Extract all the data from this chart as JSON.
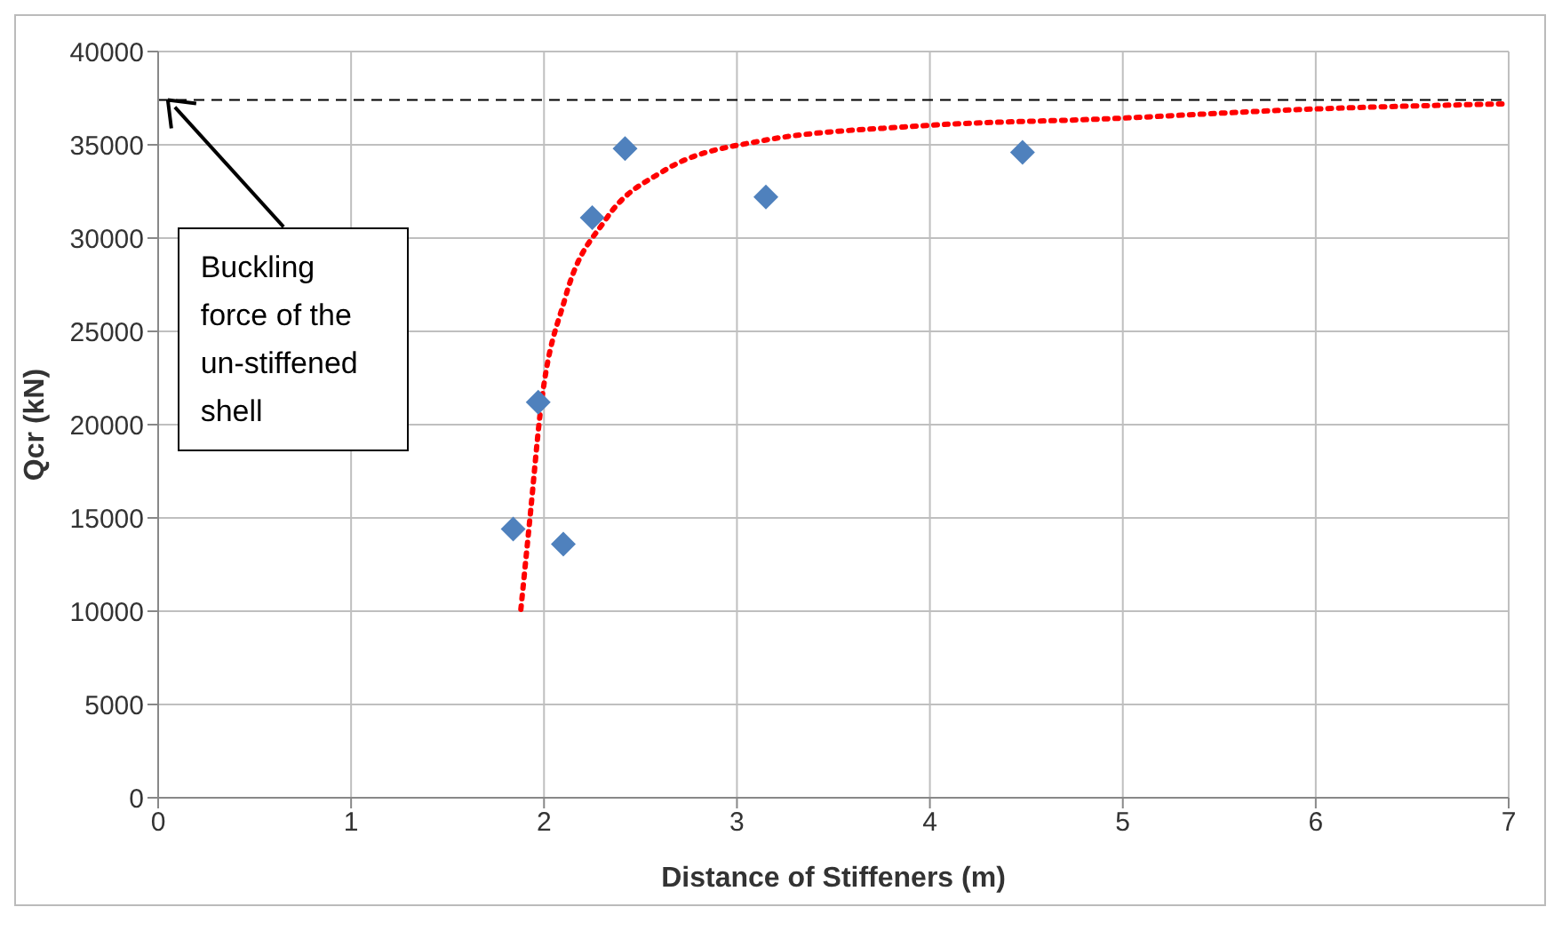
{
  "chart_data": {
    "type": "scatter",
    "xlabel": "Distance of Stiffeners (m)",
    "ylabel": "Qcr (kN)",
    "xlim": [
      0,
      7
    ],
    "xticks": [
      0,
      1,
      2,
      3,
      4,
      5,
      6,
      7
    ],
    "ylim": [
      0,
      40000
    ],
    "yticks": [
      0,
      5000,
      10000,
      15000,
      20000,
      25000,
      30000,
      35000,
      40000
    ],
    "grid": true,
    "series": [
      {
        "type": "scatter",
        "color": "#4f81bd",
        "marker": "diamond",
        "x": [
          1.84,
          2.1,
          1.97,
          2.25,
          2.42,
          3.15,
          4.48
        ],
        "values": [
          14400,
          13600,
          21200,
          31100,
          34800,
          32200,
          34600
        ]
      },
      {
        "type": "line",
        "color": "#ff0000",
        "line_style": "dotted",
        "marker": "none",
        "x": [
          1.88,
          1.93,
          1.98,
          2.11,
          2.32,
          2.62,
          3.12,
          3.93,
          4.93,
          5.94,
          7
        ],
        "values": [
          10100,
          15300,
          20600,
          26800,
          31000,
          33600,
          35200,
          36000,
          36400,
          36900,
          37200
        ]
      }
    ],
    "ref_lines": [
      {
        "axis": "y",
        "value": 37400,
        "color": "#000000",
        "line_style": "dashed"
      }
    ],
    "annotations": [
      {
        "text": "Buckling force of the un-stiffened shell",
        "x": 0.05,
        "y": 37400
      }
    ]
  }
}
